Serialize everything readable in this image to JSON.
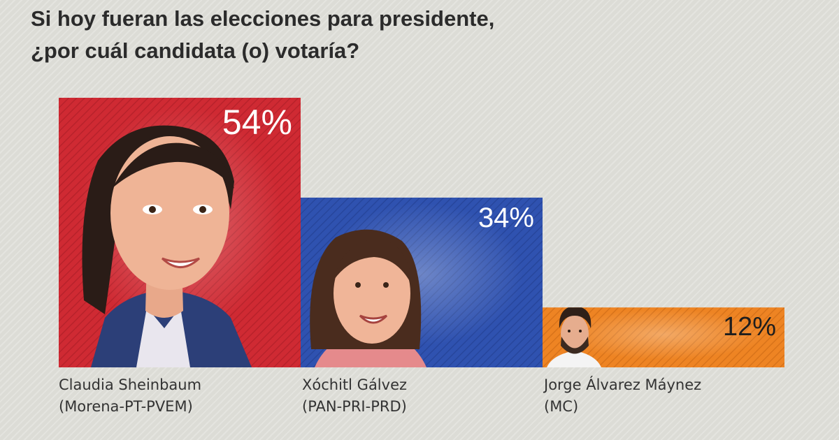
{
  "title": {
    "line1": "Si hoy fueran las elecciones para presidente,",
    "line2": "¿por cuál candidata (o) votaría?"
  },
  "chart_data": {
    "type": "bar",
    "categories": [
      "Claudia Sheinbaum (Morena-PT-PVEM)",
      "Xóchitl Gálvez (PAN-PRI-PRD)",
      "Jorge Álvarez Máynez (MC)"
    ],
    "values": [
      54,
      34,
      12
    ],
    "value_labels": [
      "54%",
      "34%",
      "12%"
    ],
    "colors": [
      "#cf2a33",
      "#2f52b0",
      "#ee8423"
    ],
    "ylim": [
      0,
      54
    ],
    "grid": false,
    "legend": "none"
  },
  "candidates": [
    {
      "name": "Claudia Sheinbaum",
      "party": "(Morena-PT-PVEM)",
      "portrait": "claudia-portrait-icon"
    },
    {
      "name": "Xóchitl Gálvez",
      "party": "(PAN-PRI-PRD)",
      "portrait": "xochitl-portrait-icon"
    },
    {
      "name": "Jorge Álvarez Máynez",
      "party": "(MC)",
      "portrait": "jorge-portrait-icon"
    }
  ]
}
